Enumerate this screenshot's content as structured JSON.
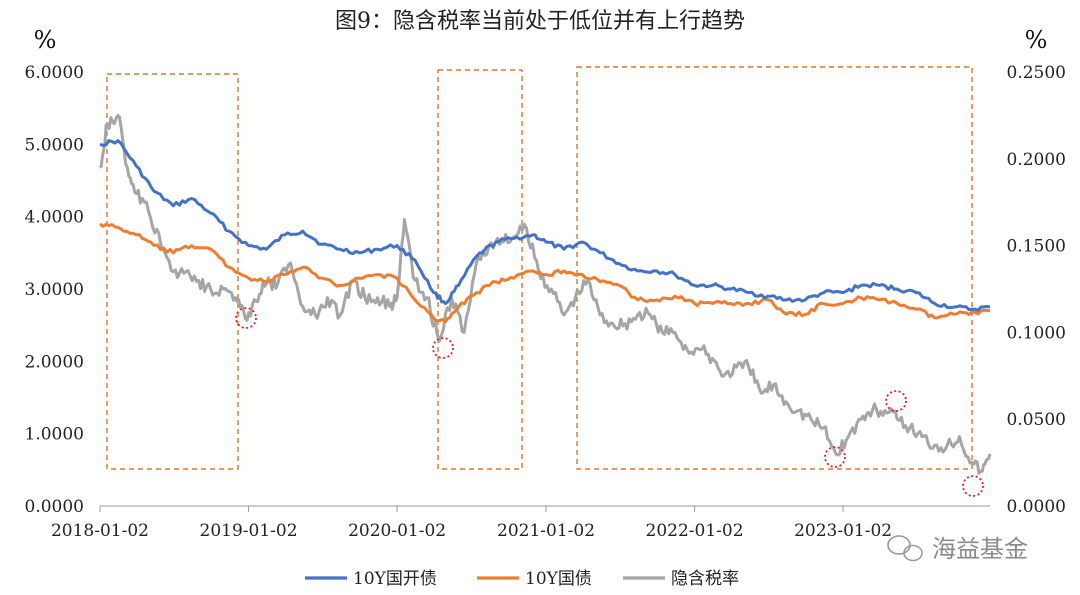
{
  "chart_data": {
    "type": "line",
    "title": "图9：隐含税率当前处于低位并有上行趋势",
    "left_unit": "%",
    "right_unit": "%",
    "x_ticks": [
      "2018-01-02",
      "2019-01-02",
      "2020-01-02",
      "2021-01-02",
      "2022-01-02",
      "2023-01-02"
    ],
    "x_range": [
      "2018-01-02",
      "2023-12-29"
    ],
    "left_axis": {
      "min": 0,
      "max": 6,
      "ticks": [
        "0.0000",
        "1.0000",
        "2.0000",
        "3.0000",
        "4.0000",
        "5.0000",
        "6.0000"
      ]
    },
    "right_axis": {
      "min": 0,
      "max": 0.25,
      "ticks": [
        "0.0000",
        "0.0500",
        "0.1000",
        "0.1500",
        "0.2000",
        "0.2500"
      ]
    },
    "grid": false,
    "legend_position": "bottom",
    "series": [
      {
        "name": "10Y国开债",
        "axis": "left",
        "color": "#4472C4",
        "x": [
          "2018-01-02",
          "2018-02-15",
          "2018-04-01",
          "2018-05-15",
          "2018-07-01",
          "2018-08-15",
          "2018-10-01",
          "2018-11-15",
          "2019-01-02",
          "2019-02-15",
          "2019-04-01",
          "2019-05-15",
          "2019-07-01",
          "2019-08-15",
          "2019-10-01",
          "2019-11-15",
          "2020-01-02",
          "2020-02-15",
          "2020-04-01",
          "2020-04-30",
          "2020-06-01",
          "2020-07-15",
          "2020-09-01",
          "2020-10-15",
          "2020-12-01",
          "2021-01-02",
          "2021-02-15",
          "2021-04-01",
          "2021-05-15",
          "2021-07-01",
          "2021-08-15",
          "2021-10-01",
          "2021-11-15",
          "2022-01-02",
          "2022-02-15",
          "2022-04-01",
          "2022-05-15",
          "2022-07-01",
          "2022-08-15",
          "2022-10-01",
          "2022-11-15",
          "2023-01-02",
          "2023-02-15",
          "2023-04-01",
          "2023-05-15",
          "2023-07-01",
          "2023-08-15",
          "2023-10-01",
          "2023-11-15",
          "2023-12-29"
        ],
        "values": [
          5.0,
          5.05,
          4.7,
          4.35,
          4.15,
          4.25,
          4.05,
          3.8,
          3.6,
          3.55,
          3.75,
          3.8,
          3.62,
          3.55,
          3.5,
          3.55,
          3.6,
          3.4,
          2.95,
          2.8,
          3.05,
          3.45,
          3.65,
          3.7,
          3.75,
          3.65,
          3.55,
          3.65,
          3.5,
          3.35,
          3.25,
          3.25,
          3.2,
          3.05,
          3.05,
          3.0,
          2.95,
          2.9,
          2.85,
          2.85,
          2.95,
          2.95,
          3.05,
          3.05,
          3.0,
          2.95,
          2.8,
          2.75,
          2.72,
          2.75
        ]
      },
      {
        "name": "10Y国债",
        "axis": "left",
        "color": "#ED7D31",
        "x": [
          "2018-01-02",
          "2018-02-15",
          "2018-04-01",
          "2018-05-15",
          "2018-07-01",
          "2018-08-15",
          "2018-10-01",
          "2018-11-15",
          "2019-01-02",
          "2019-02-15",
          "2019-04-01",
          "2019-05-15",
          "2019-07-01",
          "2019-08-15",
          "2019-10-01",
          "2019-11-15",
          "2020-01-02",
          "2020-02-15",
          "2020-04-01",
          "2020-04-30",
          "2020-06-01",
          "2020-07-15",
          "2020-09-01",
          "2020-10-15",
          "2020-12-01",
          "2021-01-02",
          "2021-02-15",
          "2021-04-01",
          "2021-05-15",
          "2021-07-01",
          "2021-08-15",
          "2021-10-01",
          "2021-11-15",
          "2022-01-02",
          "2022-02-15",
          "2022-04-01",
          "2022-05-15",
          "2022-07-01",
          "2022-08-15",
          "2022-10-01",
          "2022-11-15",
          "2023-01-02",
          "2023-02-15",
          "2023-04-01",
          "2023-05-15",
          "2023-07-01",
          "2023-08-15",
          "2023-10-01",
          "2023-11-15",
          "2023-12-29"
        ],
        "values": [
          3.9,
          3.85,
          3.75,
          3.6,
          3.5,
          3.6,
          3.55,
          3.3,
          3.15,
          3.1,
          3.2,
          3.3,
          3.15,
          3.05,
          3.15,
          3.2,
          3.15,
          2.85,
          2.6,
          2.55,
          2.75,
          2.95,
          3.1,
          3.15,
          3.25,
          3.2,
          3.25,
          3.2,
          3.1,
          3.05,
          2.85,
          2.85,
          2.9,
          2.8,
          2.8,
          2.8,
          2.8,
          2.85,
          2.65,
          2.65,
          2.8,
          2.8,
          2.88,
          2.85,
          2.8,
          2.72,
          2.6,
          2.65,
          2.68,
          2.7
        ]
      },
      {
        "name": "隐含税率",
        "axis": "right",
        "color": "#A5A5A5",
        "x": [
          "2018-01-02",
          "2018-01-20",
          "2018-02-15",
          "2018-03-10",
          "2018-04-01",
          "2018-05-01",
          "2018-06-01",
          "2018-07-01",
          "2018-08-01",
          "2018-09-01",
          "2018-10-01",
          "2018-11-01",
          "2018-12-01",
          "2018-12-25",
          "2019-01-20",
          "2019-02-15",
          "2019-03-15",
          "2019-04-15",
          "2019-05-15",
          "2019-06-15",
          "2019-07-15",
          "2019-08-15",
          "2019-09-15",
          "2019-10-15",
          "2019-11-15",
          "2019-12-15",
          "2020-01-02",
          "2020-01-20",
          "2020-02-15",
          "2020-03-15",
          "2020-04-15",
          "2020-05-15",
          "2020-06-15",
          "2020-07-15",
          "2020-08-15",
          "2020-09-15",
          "2020-10-15",
          "2020-11-15",
          "2020-12-15",
          "2021-01-15",
          "2021-02-15",
          "2021-03-15",
          "2021-04-15",
          "2021-05-15",
          "2021-06-15",
          "2021-07-15",
          "2021-08-15",
          "2021-09-15",
          "2021-10-15",
          "2021-11-15",
          "2021-12-15",
          "2022-01-15",
          "2022-02-15",
          "2022-03-15",
          "2022-04-15",
          "2022-05-15",
          "2022-06-15",
          "2022-07-15",
          "2022-08-15",
          "2022-09-15",
          "2022-10-15",
          "2022-11-15",
          "2022-12-15",
          "2023-01-15",
          "2023-02-15",
          "2023-03-15",
          "2023-04-15",
          "2023-05-15",
          "2023-06-15",
          "2023-07-15",
          "2023-08-15",
          "2023-09-15",
          "2023-10-15",
          "2023-11-15",
          "2023-12-10",
          "2023-12-29"
        ],
        "values": [
          0.195,
          0.22,
          0.225,
          0.195,
          0.18,
          0.17,
          0.15,
          0.135,
          0.135,
          0.13,
          0.125,
          0.125,
          0.12,
          0.108,
          0.118,
          0.128,
          0.128,
          0.14,
          0.115,
          0.11,
          0.12,
          0.11,
          0.13,
          0.12,
          0.12,
          0.115,
          0.12,
          0.165,
          0.13,
          0.12,
          0.095,
          0.12,
          0.1,
          0.14,
          0.15,
          0.152,
          0.155,
          0.16,
          0.135,
          0.125,
          0.11,
          0.12,
          0.13,
          0.11,
          0.105,
          0.105,
          0.11,
          0.11,
          0.1,
          0.1,
          0.09,
          0.09,
          0.085,
          0.075,
          0.08,
          0.08,
          0.065,
          0.07,
          0.06,
          0.055,
          0.05,
          0.045,
          0.03,
          0.04,
          0.05,
          0.055,
          0.055,
          0.05,
          0.045,
          0.04,
          0.035,
          0.035,
          0.04,
          0.025,
          0.02,
          0.03
        ]
      }
    ]
  },
  "watermark": {
    "text": "海益基金",
    "icon": "wechat-icon"
  }
}
